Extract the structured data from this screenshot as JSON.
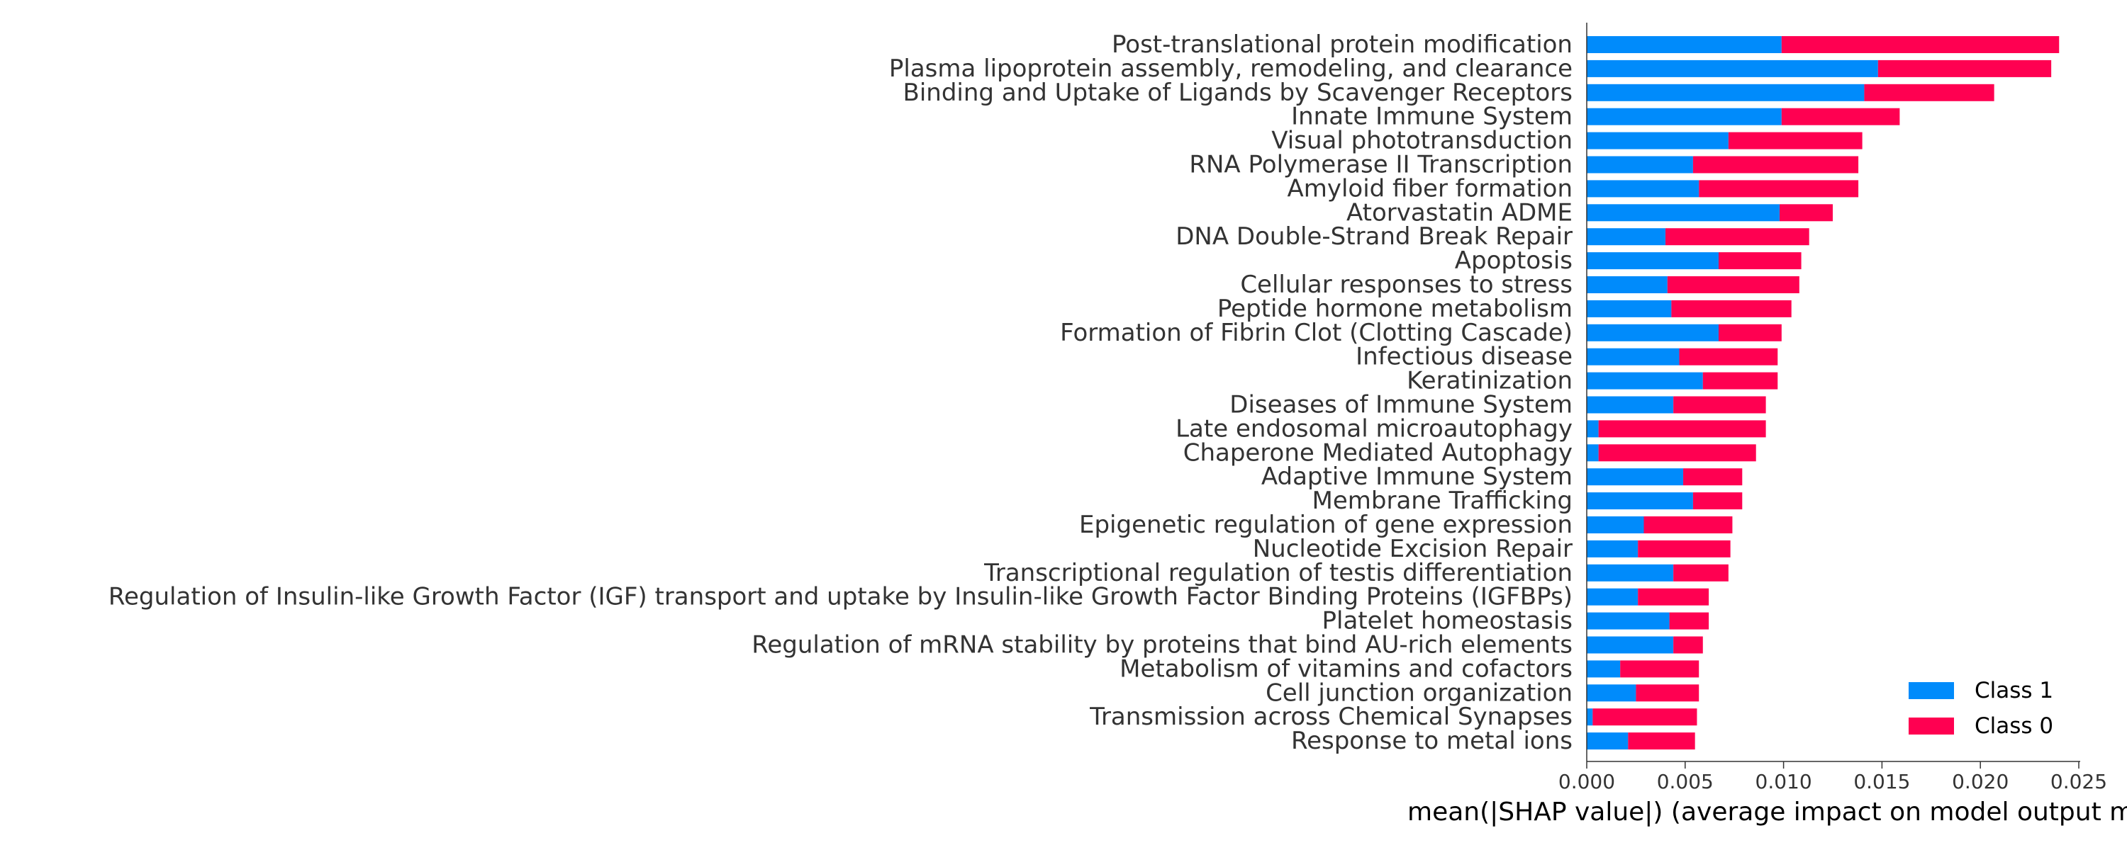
{
  "chart_data": {
    "type": "bar",
    "orientation": "horizontal",
    "stacked": true,
    "categories": [
      "Post-translational protein modification",
      "Plasma lipoprotein assembly, remodeling, and clearance",
      "Binding and Uptake of Ligands by Scavenger Receptors",
      "Innate Immune System",
      "Visual phototransduction",
      "RNA Polymerase II Transcription",
      "Amyloid fiber formation",
      "Atorvastatin ADME",
      "DNA Double-Strand Break Repair",
      "Apoptosis",
      "Cellular responses to stress",
      "Peptide hormone metabolism",
      "Formation of Fibrin Clot (Clotting Cascade)",
      "Infectious disease",
      "Keratinization",
      "Diseases of Immune System",
      "Late endosomal microautophagy",
      "Chaperone Mediated Autophagy",
      "Adaptive Immune System",
      "Membrane Trafficking",
      "Epigenetic regulation of gene expression",
      "Nucleotide Excision Repair",
      "Transcriptional regulation of testis differentiation",
      "Regulation of Insulin-like Growth Factor (IGF) transport and uptake by Insulin-like Growth Factor Binding Proteins (IGFBPs)",
      "Platelet homeostasis",
      "Regulation of mRNA stability by proteins that bind AU-rich elements",
      "Metabolism of vitamins and cofactors",
      "Cell junction organization",
      "Transmission across Chemical Synapses",
      "Response to metal ions"
    ],
    "series": [
      {
        "name": "Class 1",
        "color": "#008bfb",
        "values": [
          0.0099,
          0.0148,
          0.0141,
          0.0099,
          0.0072,
          0.0054,
          0.0057,
          0.0098,
          0.004,
          0.0067,
          0.0041,
          0.0043,
          0.0067,
          0.0047,
          0.0059,
          0.0044,
          0.0006,
          0.0006,
          0.0049,
          0.0054,
          0.0029,
          0.0026,
          0.0044,
          0.0026,
          0.0042,
          0.0044,
          0.0017,
          0.0025,
          0.0003,
          0.0021
        ]
      },
      {
        "name": "Class 0",
        "color": "#ff0051",
        "values": [
          0.0141,
          0.0088,
          0.0066,
          0.006,
          0.0068,
          0.0084,
          0.0081,
          0.0027,
          0.0073,
          0.0042,
          0.0067,
          0.0061,
          0.0032,
          0.005,
          0.0038,
          0.0047,
          0.0085,
          0.008,
          0.003,
          0.0025,
          0.0045,
          0.0047,
          0.0028,
          0.0036,
          0.002,
          0.0015,
          0.004,
          0.0032,
          0.0053,
          0.0034
        ]
      }
    ],
    "xlabel": "mean(|SHAP value|) (average impact on model output magnitude)",
    "ylabel": "",
    "xlim": [
      0,
      0.025
    ],
    "xticks": [
      "0.000",
      "0.005",
      "0.010",
      "0.015",
      "0.020",
      "0.025"
    ],
    "xtick_values": [
      0,
      0.005,
      0.01,
      0.015,
      0.02,
      0.025
    ],
    "legend": {
      "position": "lower-right",
      "entries": [
        "Class 1",
        "Class 0"
      ]
    },
    "grid": false
  }
}
